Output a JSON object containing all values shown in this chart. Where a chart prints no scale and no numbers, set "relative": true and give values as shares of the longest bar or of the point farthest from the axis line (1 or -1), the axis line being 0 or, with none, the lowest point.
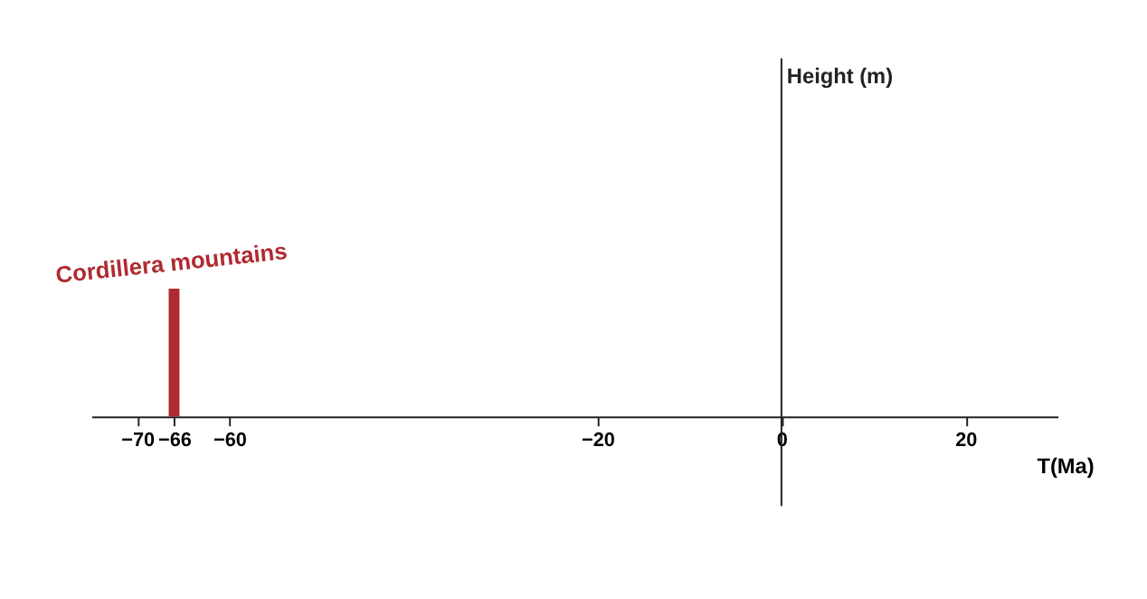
{
  "chart_data": {
    "type": "bar",
    "relative": true,
    "xlabel": "T(Ma)",
    "x": [
      -66
    ],
    "values": [
      1
    ],
    "color": "#b02a30",
    "xlim": [
      -75,
      30
    ],
    "xticks": [
      -70,
      -66,
      -60,
      -20,
      0,
      20
    ],
    "ref_lines": [
      {
        "axis": "x",
        "value": 0
      }
    ],
    "annotations": [
      "Height (m)",
      {
        "text": "Cordillera mountains",
        "x": -66,
        "y": 1
      }
    ],
    "grid": false
  }
}
